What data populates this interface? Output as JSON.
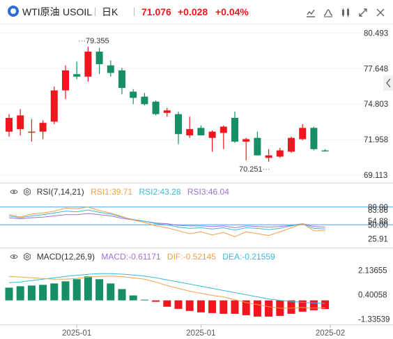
{
  "topbar": {
    "symbol": "WTI原油",
    "code": "USOIL",
    "interval": "日K",
    "price": "71.076",
    "change": "+0.028",
    "change_pct": "+0.04%",
    "up_color": "#f0151f",
    "down_color": "#168f64"
  },
  "price_axis": [
    "80.493",
    "77.648",
    "74.803",
    "71.958",
    "69.113"
  ],
  "annotations": {
    "high": "79.355",
    "low": "70.251"
  },
  "rsi": {
    "title": "RSI(7,14,21)",
    "rsi1": "RSI1:39.71",
    "rsi2": "RSI2:43.28",
    "rsi3": "RSI3:46.04",
    "axis": [
      "80.00",
      "83.86",
      "54.88",
      "50.00",
      "25.91"
    ]
  },
  "macd": {
    "title": "MACD(12,26,9)",
    "macd": "MACD:-0.61171",
    "dif": "DIF:-0.52145",
    "dea": "DEA:-0.21559",
    "axis": [
      "2.13655",
      "0.40058",
      "-1.33539"
    ]
  },
  "x_axis": [
    "2025-01",
    "2025-01",
    "2025-02"
  ],
  "colors": {
    "rsi1": "#f5a046",
    "rsi2": "#3bb8d8",
    "rsi3": "#9b72d8",
    "dif": "#f5a046",
    "dea": "#3bb8d8",
    "line": "#4aa3e8"
  },
  "icons": [
    "chart-type-icon",
    "indicator-icon",
    "drawing-icon",
    "fullscreen-icon",
    "close-icon",
    "collapse-arrow-icon",
    "eye-icon",
    "settings-icon"
  ],
  "chart_data": {
    "type": "candlestick",
    "candles": [
      {
        "o": 72.6,
        "h": 74.0,
        "l": 72.2,
        "c": 73.7
      },
      {
        "o": 72.8,
        "h": 74.4,
        "l": 72.3,
        "c": 73.9
      },
      {
        "o": 72.6,
        "h": 73.6,
        "l": 71.8,
        "c": 72.6
      },
      {
        "o": 72.6,
        "h": 73.5,
        "l": 72.0,
        "c": 73.3
      },
      {
        "o": 73.4,
        "h": 76.2,
        "l": 73.2,
        "c": 75.9
      },
      {
        "o": 75.9,
        "h": 77.9,
        "l": 75.2,
        "c": 77.5
      },
      {
        "o": 77.2,
        "h": 78.2,
        "l": 76.8,
        "c": 77.0
      },
      {
        "o": 77.0,
        "h": 79.4,
        "l": 76.6,
        "c": 79.0
      },
      {
        "o": 79.0,
        "h": 79.3,
        "l": 77.2,
        "c": 78.0
      },
      {
        "o": 77.9,
        "h": 78.3,
        "l": 77.0,
        "c": 77.3
      },
      {
        "o": 77.5,
        "h": 77.7,
        "l": 75.6,
        "c": 76.1
      },
      {
        "o": 75.8,
        "h": 76.0,
        "l": 74.8,
        "c": 75.3
      },
      {
        "o": 75.4,
        "h": 75.7,
        "l": 74.7,
        "c": 74.8
      },
      {
        "o": 75.0,
        "h": 75.1,
        "l": 73.9,
        "c": 74.0
      },
      {
        "o": 74.1,
        "h": 74.5,
        "l": 73.8,
        "c": 74.3
      },
      {
        "o": 74.0,
        "h": 74.2,
        "l": 71.6,
        "c": 72.4
      },
      {
        "o": 72.3,
        "h": 73.8,
        "l": 72.1,
        "c": 72.8
      },
      {
        "o": 72.9,
        "h": 73.1,
        "l": 72.3,
        "c": 72.3
      },
      {
        "o": 72.1,
        "h": 72.7,
        "l": 71.0,
        "c": 72.6
      },
      {
        "o": 72.5,
        "h": 73.1,
        "l": 71.2,
        "c": 73.0
      },
      {
        "o": 73.7,
        "h": 74.2,
        "l": 71.7,
        "c": 71.8
      },
      {
        "o": 71.8,
        "h": 72.1,
        "l": 70.3,
        "c": 72.0
      },
      {
        "o": 72.1,
        "h": 72.6,
        "l": 70.7,
        "c": 70.7
      },
      {
        "o": 70.5,
        "h": 71.2,
        "l": 70.2,
        "c": 70.7
      },
      {
        "o": 70.6,
        "h": 71.3,
        "l": 70.5,
        "c": 71.1
      },
      {
        "o": 71.0,
        "h": 72.2,
        "l": 70.9,
        "c": 72.1
      },
      {
        "o": 72.0,
        "h": 73.2,
        "l": 71.9,
        "c": 72.9
      },
      {
        "o": 72.9,
        "h": 73.0,
        "l": 71.1,
        "c": 71.2
      },
      {
        "o": 71.1,
        "h": 71.2,
        "l": 71.0,
        "c": 71.08
      }
    ],
    "ylim": [
      68.9,
      80.9
    ],
    "rsi": {
      "rsi1": [
        67,
        63,
        68,
        70,
        73,
        78,
        77,
        80,
        74,
        70,
        64,
        58,
        54,
        48,
        45,
        40,
        35,
        38,
        33,
        37,
        30,
        38,
        35,
        32,
        38,
        45,
        52,
        40,
        40
      ],
      "rsi2": [
        65,
        62,
        65,
        67,
        70,
        73,
        72,
        75,
        71,
        68,
        63,
        59,
        56,
        52,
        50,
        46,
        44,
        45,
        43,
        45,
        41,
        45,
        44,
        42,
        44,
        48,
        52,
        44,
        43
      ],
      "rsi3": [
        62,
        60,
        62,
        63,
        65,
        67,
        67,
        69,
        67,
        65,
        61,
        58,
        56,
        53,
        52,
        49,
        48,
        48,
        47,
        48,
        45,
        48,
        47,
        46,
        47,
        49,
        52,
        47,
        46
      ],
      "ylim": [
        15,
        95
      ],
      "levels": [
        80,
        50
      ]
    },
    "macd": {
      "hist": [
        0.9,
        1.0,
        1.05,
        1.1,
        1.2,
        1.35,
        1.5,
        1.7,
        1.5,
        1.2,
        0.8,
        0.35,
        0.05,
        -0.1,
        -0.45,
        -0.6,
        -0.75,
        -0.85,
        -0.9,
        -0.95,
        -0.95,
        -1.05,
        -1.15,
        -1.15,
        -1.1,
        -0.95,
        -0.8,
        -0.7,
        -0.61
      ],
      "dif": [
        1.7,
        1.65,
        1.6,
        1.55,
        1.5,
        1.5,
        1.55,
        1.65,
        1.7,
        1.72,
        1.68,
        1.6,
        1.5,
        1.3,
        1.05,
        0.85,
        0.65,
        0.5,
        0.35,
        0.25,
        0.05,
        -0.15,
        -0.3,
        -0.45,
        -0.55,
        -0.55,
        -0.5,
        -0.55,
        -0.52
      ],
      "dea": [
        1.25,
        1.3,
        1.4,
        1.5,
        1.6,
        1.7,
        1.78,
        1.85,
        1.9,
        1.9,
        1.86,
        1.8,
        1.72,
        1.6,
        1.45,
        1.3,
        1.15,
        1.0,
        0.85,
        0.7,
        0.55,
        0.4,
        0.25,
        0.1,
        0.0,
        -0.08,
        -0.14,
        -0.18,
        -0.22
      ],
      "ylim": [
        -1.55,
        2.6
      ]
    }
  }
}
